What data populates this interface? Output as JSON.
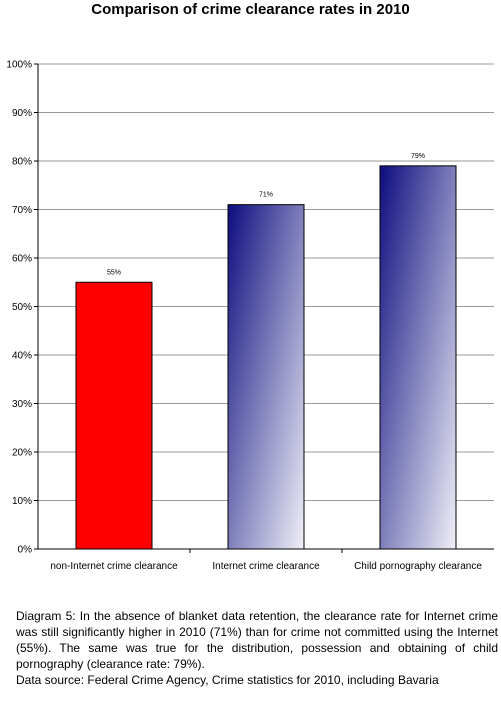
{
  "chart_data": {
    "type": "bar",
    "title": "Comparison of crime clearance rates in 2010",
    "categories": [
      "non-Internet crime clearance",
      "Internet crime clearance",
      "Child pornography clearance"
    ],
    "values": [
      55,
      71,
      79
    ],
    "data_labels": [
      "55%",
      "71%",
      "79%"
    ],
    "yticks": [
      "0%",
      "10%",
      "20%",
      "30%",
      "40%",
      "50%",
      "60%",
      "70%",
      "80%",
      "90%",
      "100%"
    ],
    "ylim": [
      0,
      100
    ],
    "grid": true,
    "legend": "none",
    "colors": {
      "non_internet": "#ff0000",
      "gradient_dark": "#0d0d7f",
      "gradient_light": "#f0f0f8",
      "grid": "#9a9a9a"
    }
  },
  "caption": "Diagram 5: In the absence of blanket data retention, the clearance rate for Internet crime was still significantly higher in 2010 (71%) than for crime not committed using the Internet (55%). The same was true for the distribution, possession and obtaining of child pornography (clearance rate: 79%).",
  "source": "Data source: Federal Crime Agency, Crime statistics for 2010, including Bavaria"
}
